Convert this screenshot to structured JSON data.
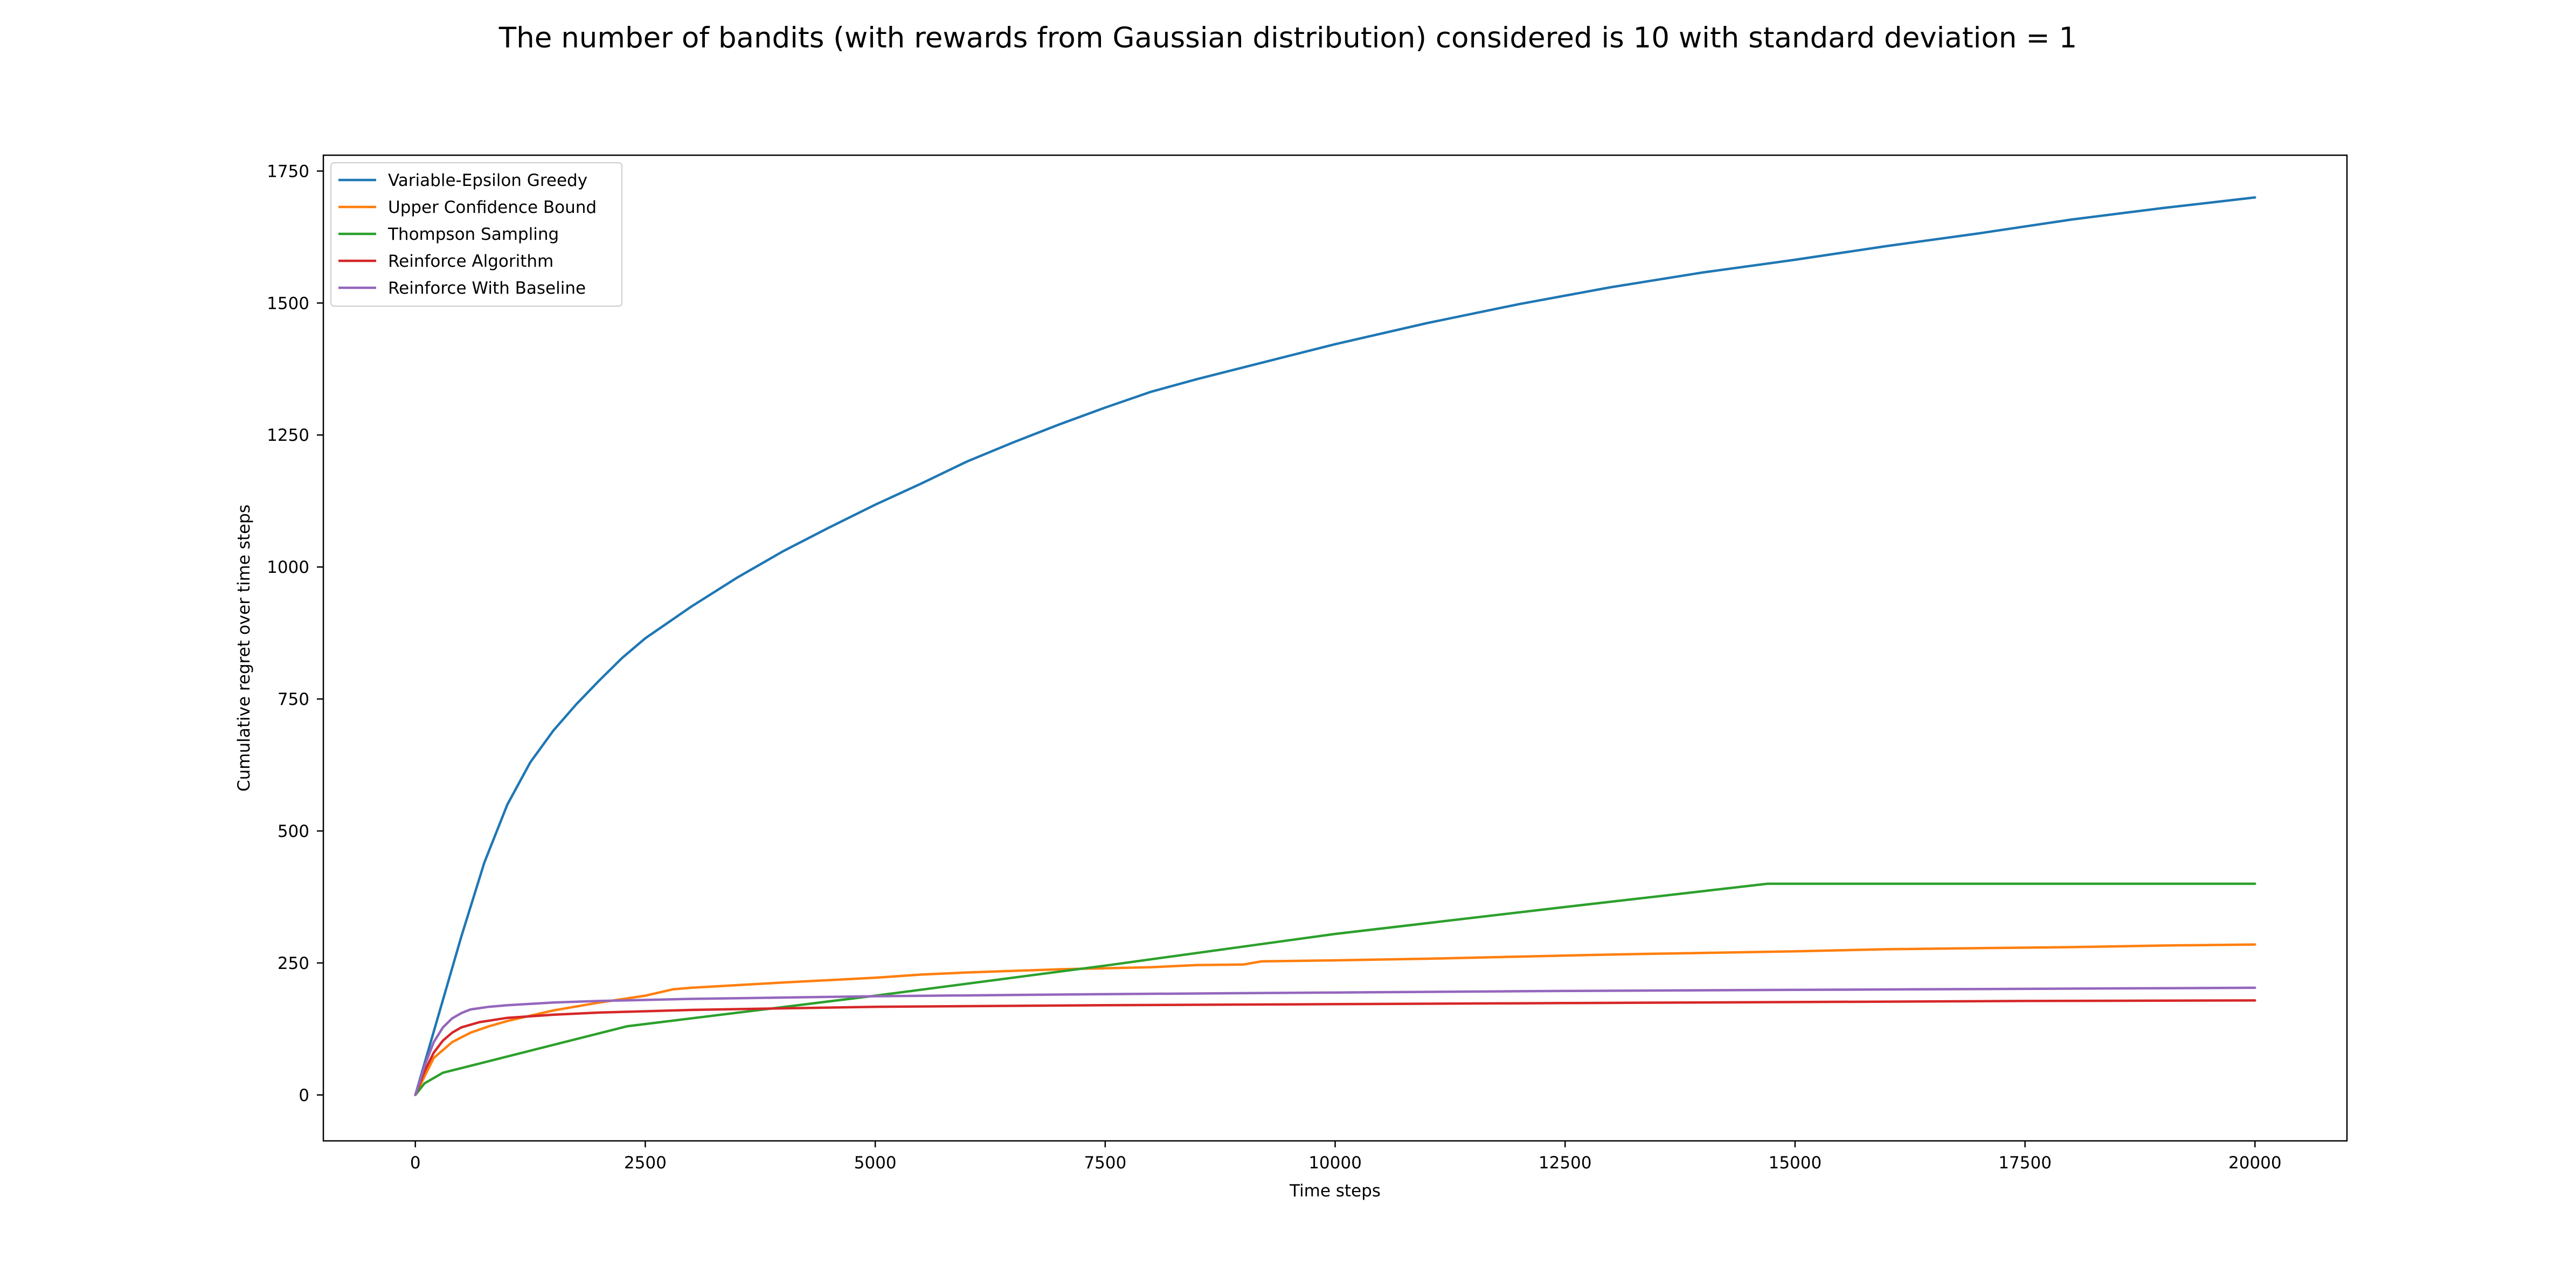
{
  "chart_data": {
    "type": "line",
    "title": "The number of bandits (with rewards from Gaussian distribution) considered is 10 with standard deviation = 1",
    "xlabel": "Time steps",
    "ylabel": "Cumulative regret over time steps",
    "xlim": [
      -1000,
      21000
    ],
    "ylim": [
      -87,
      1780
    ],
    "xticks": [
      0,
      2500,
      5000,
      7500,
      10000,
      12500,
      15000,
      17500,
      20000
    ],
    "yticks": [
      0,
      250,
      500,
      750,
      1000,
      1250,
      1500,
      1750
    ],
    "grid": false,
    "legend_position": "upper-left",
    "series": [
      {
        "name": "Variable-Epsilon Greedy",
        "color": "#1f77b4",
        "x": [
          0,
          250,
          500,
          750,
          1000,
          1250,
          1500,
          1750,
          2000,
          2250,
          2500,
          2750,
          3000,
          3500,
          4000,
          4500,
          5000,
          5500,
          6000,
          6500,
          7000,
          7500,
          8000,
          8500,
          9000,
          10000,
          11000,
          12000,
          13000,
          14000,
          15000,
          16000,
          17000,
          18000,
          19000,
          20000
        ],
        "y": [
          0,
          150,
          300,
          440,
          550,
          630,
          690,
          740,
          785,
          828,
          865,
          895,
          925,
          980,
          1030,
          1075,
          1118,
          1158,
          1200,
          1236,
          1270,
          1302,
          1332,
          1356,
          1378,
          1422,
          1462,
          1498,
          1530,
          1558,
          1582,
          1608,
          1632,
          1658,
          1680,
          1700
        ]
      },
      {
        "name": "Upper Confidence Bound",
        "color": "#ff7f0e",
        "x": [
          0,
          200,
          400,
          600,
          800,
          1000,
          1500,
          2000,
          2500,
          2800,
          3000,
          3500,
          4000,
          5000,
          5500,
          6000,
          7000,
          8000,
          8500,
          9000,
          9200,
          10000,
          11000,
          12000,
          13000,
          14000,
          15000,
          16000,
          17000,
          18000,
          19000,
          20000
        ],
        "y": [
          0,
          70,
          100,
          118,
          130,
          140,
          160,
          175,
          188,
          200,
          203,
          208,
          213,
          222,
          228,
          232,
          238,
          242,
          246,
          247,
          253,
          255,
          258,
          262,
          266,
          269,
          272,
          276,
          278,
          280,
          283,
          285
        ]
      },
      {
        "name": "Thompson Sampling",
        "color": "#2ca02c",
        "x": [
          0,
          100,
          300,
          2300,
          5000,
          7500,
          10000,
          12500,
          14700,
          15000,
          17500,
          20000
        ],
        "y": [
          0,
          22,
          42,
          130,
          188,
          245,
          305,
          356,
          400,
          400,
          400,
          400
        ]
      },
      {
        "name": "Reinforce Algorithm",
        "color": "#d62728",
        "x": [
          0,
          100,
          200,
          300,
          400,
          500,
          700,
          1000,
          1500,
          2000,
          3000,
          5000,
          7500,
          10000,
          12500,
          15000,
          17500,
          20000
        ],
        "y": [
          0,
          45,
          80,
          103,
          118,
          128,
          138,
          146,
          152,
          156,
          161,
          167,
          170,
          172,
          174,
          176,
          178,
          179
        ]
      },
      {
        "name": "Reinforce With Baseline",
        "color": "#9467bd",
        "x": [
          0,
          100,
          200,
          300,
          400,
          500,
          600,
          800,
          1000,
          1500,
          2000,
          3000,
          5000,
          7500,
          10000,
          12500,
          15000,
          17500,
          20000
        ],
        "y": [
          0,
          55,
          100,
          128,
          145,
          155,
          162,
          167,
          170,
          175,
          178,
          182,
          187,
          191,
          194,
          197,
          199,
          201,
          203
        ]
      }
    ]
  }
}
